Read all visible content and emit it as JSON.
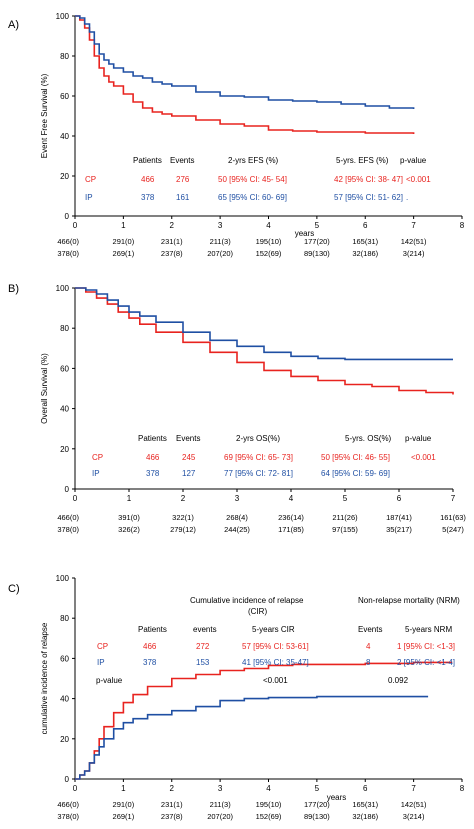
{
  "colors": {
    "cp": "#e8231f",
    "ip": "#1f4fa3",
    "axis": "#000000"
  },
  "chart_data": [
    {
      "type": "line",
      "panel_label": "A)",
      "ylabel": "Event Free Survival (%)",
      "xlabel": "years",
      "xlim": [
        0,
        8
      ],
      "ylim": [
        0,
        100
      ],
      "xticks": [
        "0",
        "1",
        "2",
        "3",
        "4",
        "5",
        "6",
        "7",
        "8"
      ],
      "yticks": [
        "0",
        "20",
        "40",
        "60",
        "80",
        "100"
      ],
      "series": [
        {
          "name": "CP",
          "color": "#e8231f",
          "x": [
            0,
            0.1,
            0.2,
            0.3,
            0.4,
            0.5,
            0.6,
            0.7,
            0.8,
            1,
            1.2,
            1.4,
            1.6,
            1.8,
            2,
            2.5,
            3,
            3.5,
            4,
            4.5,
            5,
            5.5,
            6,
            6.5,
            7
          ],
          "y": [
            100,
            98,
            94,
            88,
            80,
            74,
            70,
            67,
            65,
            61,
            57,
            54,
            52,
            51,
            50,
            48,
            46,
            45,
            43,
            42.5,
            42,
            42,
            41.5,
            41.5,
            41
          ]
        },
        {
          "name": "IP",
          "color": "#1f4fa3",
          "x": [
            0,
            0.1,
            0.2,
            0.3,
            0.4,
            0.5,
            0.6,
            0.7,
            0.8,
            1,
            1.2,
            1.4,
            1.6,
            1.8,
            2,
            2.5,
            3,
            3.5,
            4,
            4.5,
            5,
            5.5,
            6,
            6.5,
            7
          ],
          "y": [
            100,
            99,
            96,
            92,
            86,
            81,
            78,
            76,
            74,
            72,
            70,
            69,
            67,
            66,
            65,
            62,
            60,
            59.5,
            58,
            57.5,
            57,
            56,
            55,
            54,
            53.5
          ]
        }
      ],
      "table": {
        "headers": [
          "Patients",
          "Events",
          "2-yrs EFS (%)",
          "5-yrs. EFS (%)",
          "p-value"
        ],
        "rows": [
          {
            "group": "CP",
            "patients": "466",
            "events": "276",
            "rate2": "50 [95% CI: 45- 54]",
            "rate5": "42 [95% CI: 38- 47]",
            "p": "<0.001"
          },
          {
            "group": "IP",
            "patients": "378",
            "events": "161",
            "rate2": "65 [95% CI: 60- 69]",
            "rate5": "57 [95% CI: 51- 62]",
            "p": "."
          }
        ]
      },
      "risk_table": {
        "cp": [
          "466(0)",
          "291(0)",
          "231(1)",
          "211(3)",
          "195(10)",
          "177(20)",
          "165(31)",
          "142(51)"
        ],
        "ip": [
          "378(0)",
          "269(1)",
          "237(8)",
          "207(20)",
          "152(69)",
          "89(130)",
          "32(186)",
          "3(214)"
        ]
      }
    },
    {
      "type": "line",
      "panel_label": "B)",
      "ylabel": "Overall Survival (%)",
      "xlabel": "",
      "xlim": [
        0,
        7
      ],
      "ylim": [
        0,
        100
      ],
      "xticks": [
        "0",
        "1",
        "2",
        "3",
        "4",
        "5",
        "6",
        "7"
      ],
      "yticks": [
        "0",
        "20",
        "40",
        "60",
        "80",
        "100"
      ],
      "series": [
        {
          "name": "CP",
          "color": "#e8231f",
          "x": [
            0,
            0.2,
            0.4,
            0.6,
            0.8,
            1,
            1.2,
            1.5,
            2,
            2.5,
            3,
            3.5,
            4,
            4.5,
            5,
            5.5,
            6,
            6.5,
            7
          ],
          "y": [
            100,
            98,
            95,
            92,
            88,
            85,
            82,
            78,
            73,
            68,
            63,
            59,
            56,
            54,
            52,
            51,
            49,
            48,
            47
          ]
        },
        {
          "name": "IP",
          "color": "#1f4fa3",
          "x": [
            0,
            0.2,
            0.4,
            0.6,
            0.8,
            1,
            1.2,
            1.5,
            2,
            2.5,
            3,
            3.5,
            4,
            4.5,
            5,
            5.5,
            6,
            6.5,
            7
          ],
          "y": [
            100,
            99,
            97,
            94,
            91,
            88,
            86,
            83,
            78,
            74,
            71,
            68,
            66,
            65,
            64.5,
            64.5,
            64.5,
            64.5,
            64.5
          ]
        }
      ],
      "table": {
        "headers": [
          "Patients",
          "Events",
          "2-yrs OS(%)",
          "5-yrs. OS(%)",
          "p-value"
        ],
        "rows": [
          {
            "group": "CP",
            "patients": "466",
            "events": "245",
            "rate2": "69 [95% CI: 65- 73]",
            "rate5": "50 [95% CI: 46- 55]",
            "p": "<0.001"
          },
          {
            "group": "IP",
            "patients": "378",
            "events": "127",
            "rate2": "77 [95% CI: 72- 81]",
            "rate5": "64 [95% CI: 59- 69]",
            "p": ""
          }
        ]
      },
      "risk_table": {
        "cp": [
          "466(0)",
          "391(0)",
          "322(1)",
          "268(4)",
          "236(14)",
          "211(26)",
          "187(41)",
          "161(63)"
        ],
        "ip": [
          "378(0)",
          "326(2)",
          "279(12)",
          "244(25)",
          "171(85)",
          "97(155)",
          "35(217)",
          "5(247)"
        ]
      }
    },
    {
      "type": "line",
      "panel_label": "C)",
      "ylabel": "cumulative incidence of relapse",
      "xlabel": "years",
      "xlim": [
        0,
        8
      ],
      "ylim": [
        0,
        100
      ],
      "xticks": [
        "0",
        "1",
        "2",
        "3",
        "4",
        "5",
        "6",
        "7",
        "8"
      ],
      "yticks": [
        "0",
        "20",
        "40",
        "60",
        "80",
        "100"
      ],
      "series": [
        {
          "name": "CP",
          "color": "#e8231f",
          "x": [
            0,
            0.1,
            0.2,
            0.3,
            0.4,
            0.5,
            0.6,
            0.8,
            1,
            1.2,
            1.5,
            2,
            2.5,
            3,
            3.5,
            4,
            4.5,
            5,
            6,
            7,
            7.8
          ],
          "y": [
            0,
            2,
            4,
            8,
            14,
            20,
            26,
            33,
            38,
            42,
            46,
            50,
            52,
            54,
            55,
            56.5,
            57,
            57,
            57.5,
            58,
            58
          ]
        },
        {
          "name": "IP",
          "color": "#1f4fa3",
          "x": [
            0,
            0.1,
            0.2,
            0.3,
            0.4,
            0.5,
            0.6,
            0.8,
            1,
            1.2,
            1.5,
            2,
            2.5,
            3,
            3.5,
            4,
            4.5,
            5,
            6,
            7,
            7.3
          ],
          "y": [
            0,
            2,
            4,
            8,
            12,
            16,
            20,
            25,
            28,
            30,
            32,
            34,
            36,
            39,
            40,
            40.5,
            40.5,
            41,
            41,
            41,
            41
          ]
        }
      ],
      "header": {
        "cir": "Cumulative   incidence of relapse",
        "cir_sub": "(CIR)",
        "nrm": "Non-relapse  mortality (NRM)"
      },
      "table": {
        "headers": [
          "Patients",
          "events",
          "5-years  CIR",
          "Events",
          "5-years  NRM"
        ],
        "rows": [
          {
            "group": "CP",
            "patients": "466",
            "events": "272",
            "cir5": "57 [95% CI: 53-61]",
            "nrm_events": "4",
            "nrm5": "1 [95% CI: <1-3]"
          },
          {
            "group": "IP",
            "patients": "378",
            "events": "153",
            "cir5": "41 [95% CI: 35-47]",
            "nrm_events": "8",
            "nrm5": "2 [95% CI: <1-4]"
          }
        ],
        "p_label": "p-value",
        "p_cir": "<0.001",
        "p_nrm": "0.092"
      },
      "risk_table": {
        "cp": [
          "466(0)",
          "291(0)",
          "231(1)",
          "211(3)",
          "195(10)",
          "177(20)",
          "165(31)",
          "142(51)"
        ],
        "ip": [
          "378(0)",
          "269(1)",
          "237(8)",
          "207(20)",
          "152(69)",
          "89(130)",
          "32(186)",
          "3(214)"
        ]
      }
    }
  ]
}
